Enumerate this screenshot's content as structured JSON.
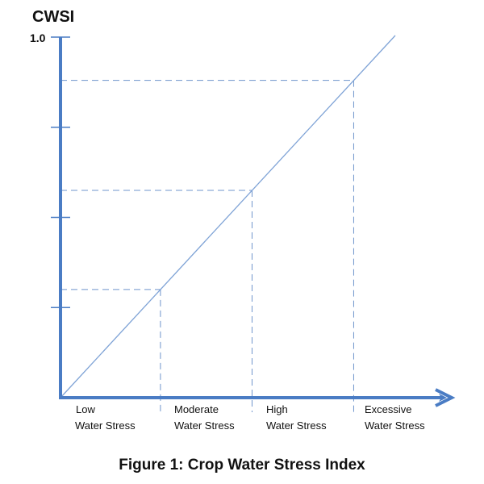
{
  "chart_data": {
    "type": "line",
    "title": "Figure 1: Crop Water Stress Index",
    "ylabel": "CWSI",
    "xlabel": "",
    "ylim": [
      0,
      1.0
    ],
    "xlim": [
      0,
      1.0
    ],
    "y_tick_labels": [
      "1.0"
    ],
    "y_ticks": [
      0.25,
      0.5,
      0.75,
      1.0
    ],
    "line": {
      "x": [
        0,
        1.0
      ],
      "y": [
        0,
        1.0
      ]
    },
    "thresholds": [
      0.3,
      0.575,
      0.88
    ],
    "categories": [
      {
        "line1": "Low",
        "line2": "Water Stress"
      },
      {
        "line1": "Moderate",
        "line2": "Water Stress"
      },
      {
        "line1": "High",
        "line2": "Water Stress"
      },
      {
        "line1": "Excessive",
        "line2": "Water Stress"
      }
    ],
    "colors": {
      "axis": "#4a7cc4",
      "line": "#7fa3d6",
      "dash": "#6f95cc"
    }
  }
}
